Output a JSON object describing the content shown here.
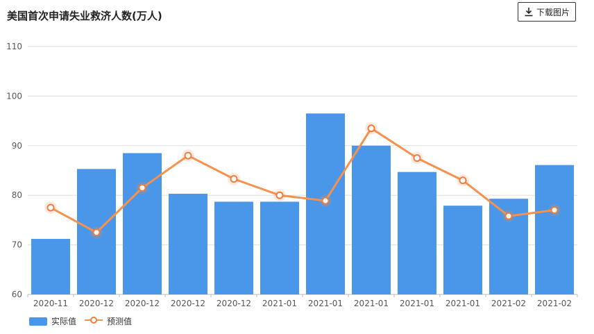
{
  "title": "美国首次申请失业救济人数(万人)",
  "toolbar": {
    "download_label": "下载图片"
  },
  "colors": {
    "bar": "#4a96e8",
    "line": "#f7914b",
    "point_fill": "#ffffff",
    "point_stroke": "#f07c3c"
  },
  "chart_data": {
    "type": "bar",
    "categories": [
      "2020-11",
      "2020-12",
      "2020-12",
      "2020-12",
      "2020-12",
      "2021-01",
      "2021-01",
      "2021-01",
      "2021-01",
      "2021-01",
      "2021-02",
      "2021-02"
    ],
    "series": [
      {
        "name": "实际值",
        "type": "bar",
        "values": [
          71.2,
          85.3,
          88.5,
          80.3,
          78.7,
          78.7,
          96.5,
          90.0,
          84.7,
          77.9,
          79.3,
          86.1
        ]
      },
      {
        "name": "预测值",
        "type": "line",
        "values": [
          77.5,
          72.5,
          81.5,
          88.0,
          83.3,
          80.0,
          78.9,
          93.5,
          87.5,
          83.0,
          75.8,
          77.0
        ]
      }
    ],
    "ylim": [
      60,
      110
    ],
    "yticks": [
      60,
      70,
      80,
      90,
      100,
      110
    ],
    "grid": true,
    "legend": "bottom-left"
  }
}
